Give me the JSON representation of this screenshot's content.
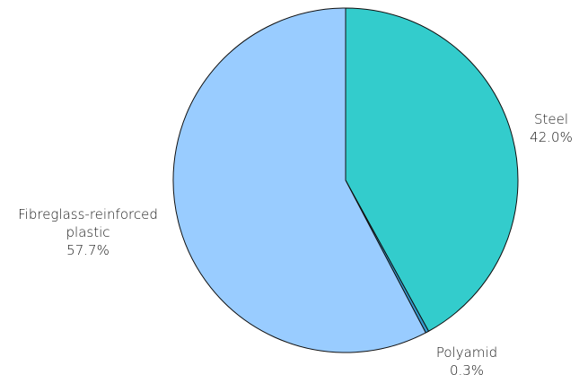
{
  "chart_data": {
    "type": "pie",
    "title": "",
    "slices": [
      {
        "label": "Steel",
        "label_lines": [
          "Steel"
        ],
        "value": 42.0,
        "display": "42.0%",
        "color": "#33CCCC"
      },
      {
        "label": "Polyamid",
        "label_lines": [
          "Polyamid"
        ],
        "value": 0.3,
        "display": "0.3%",
        "color": "#3399CC"
      },
      {
        "label": "Fibreglass-reinforced plastic",
        "label_lines": [
          "Fibreglass-reinforced",
          "plastic"
        ],
        "value": 57.7,
        "display": "57.7%",
        "color": "#99CCFF"
      }
    ],
    "start_angle": "12 o'clock",
    "direction": "clockwise",
    "legend": "none"
  }
}
